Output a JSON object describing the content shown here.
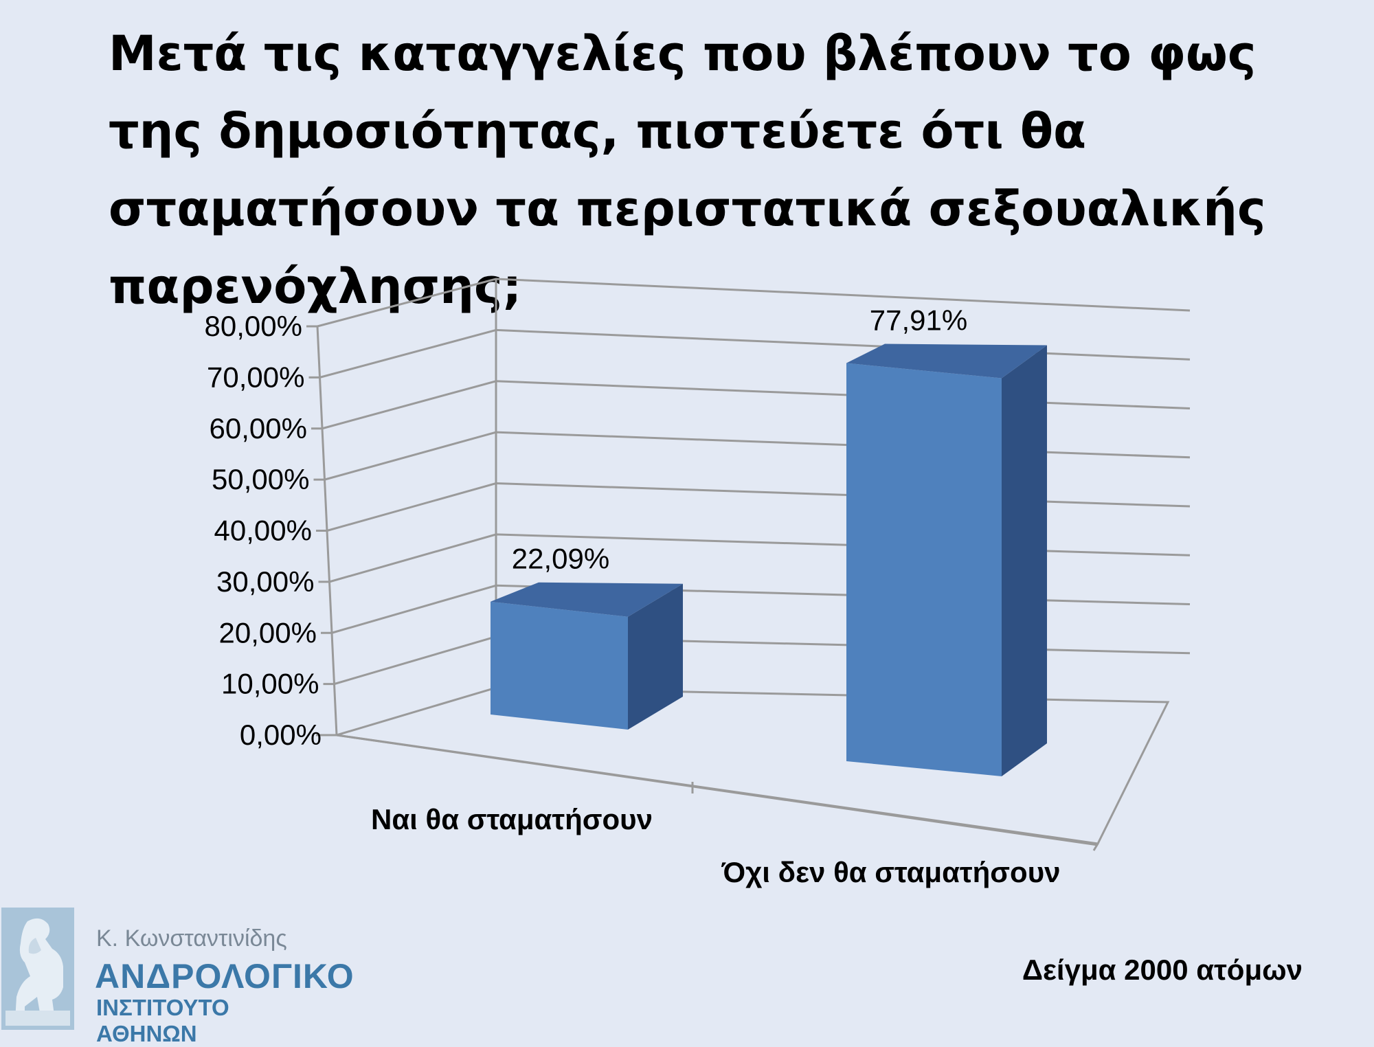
{
  "chart_data": {
    "type": "bar",
    "title": "Μετά τις καταγγελίες που βλέπουν το φως της δημοσιότητας, πιστεύετε ότι θα σταματήσουν τα περιστατικά σεξουαλικής παρενόχλησης;",
    "categories": [
      "Ναι θα σταματήσουν",
      "Όχι δεν θα σταματήσουν"
    ],
    "values": [
      22.09,
      77.91
    ],
    "data_labels": [
      "22,09%",
      "77,91%"
    ],
    "ylim": [
      0,
      80
    ],
    "yticks": [
      "0,00%",
      "10,00%",
      "20,00%",
      "30,00%",
      "40,00%",
      "50,00%",
      "60,00%",
      "70,00%",
      "80,00%"
    ],
    "grid": true,
    "style": "3d-column",
    "colors": {
      "front": "#4f81bd",
      "top": "#3e66a0",
      "side": "#2f5082"
    }
  },
  "footer": {
    "sample": "Δείγμα 2000 ατόμων",
    "logo": {
      "name": "Κ. Κωνσταντινίδης",
      "line1": "ΑΝΔΡΟΛΟΓΙΚΟ",
      "line2": "ΙΝΣΤΙΤΟΥΤΟ ΑΘΗΝΩΝ"
    }
  }
}
